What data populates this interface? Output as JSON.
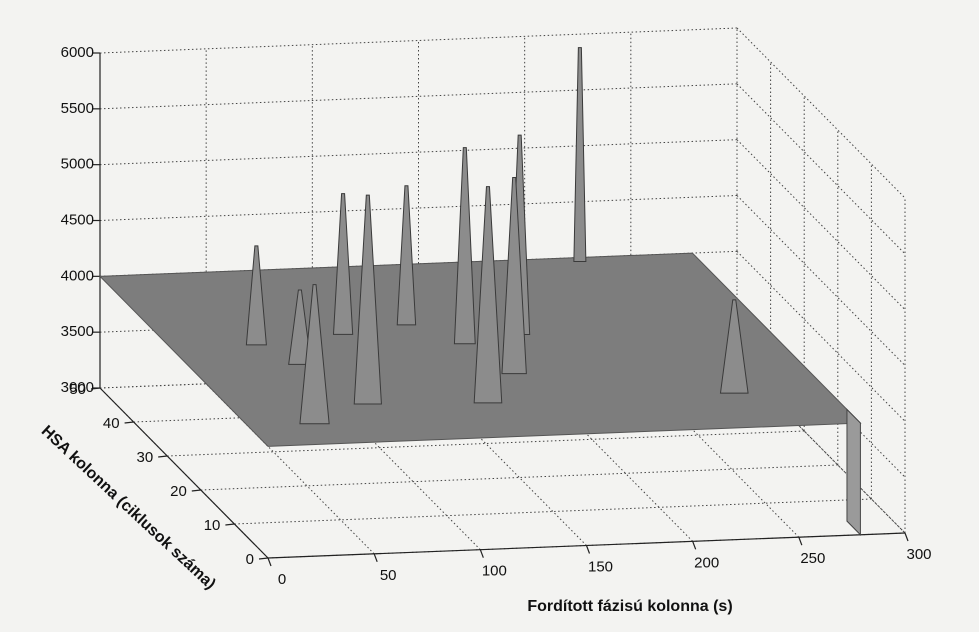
{
  "chart_data": {
    "type": "surface3d",
    "xlabel": "Fordított fázisú kolonna (s)",
    "ylabel": "HSA kolonna (ciklusok száma)",
    "xlim": [
      0,
      300
    ],
    "ylim": [
      0,
      50
    ],
    "zlim": [
      3000,
      6000
    ],
    "xticks": [
      0,
      50,
      100,
      150,
      200,
      250,
      300
    ],
    "yticks": [
      0,
      10,
      20,
      30,
      40,
      50
    ],
    "zticks": [
      3000,
      3500,
      4000,
      4500,
      5000,
      5500,
      6000
    ],
    "grid": true,
    "color": "#8c8c8c",
    "base_level": 4000,
    "peaks": {
      "x": [
        226,
        166,
        121,
        137,
        146,
        119,
        66,
        86,
        42,
        33,
        237,
        53
      ],
      "y": [
        50,
        30,
        11,
        28,
        19,
        34,
        12,
        32,
        30,
        7,
        11,
        24
      ],
      "z": [
        5880,
        5750,
        5900,
        5720,
        5720,
        5210,
        5835,
        5225,
        4850,
        5210,
        4800,
        4630
      ]
    }
  }
}
